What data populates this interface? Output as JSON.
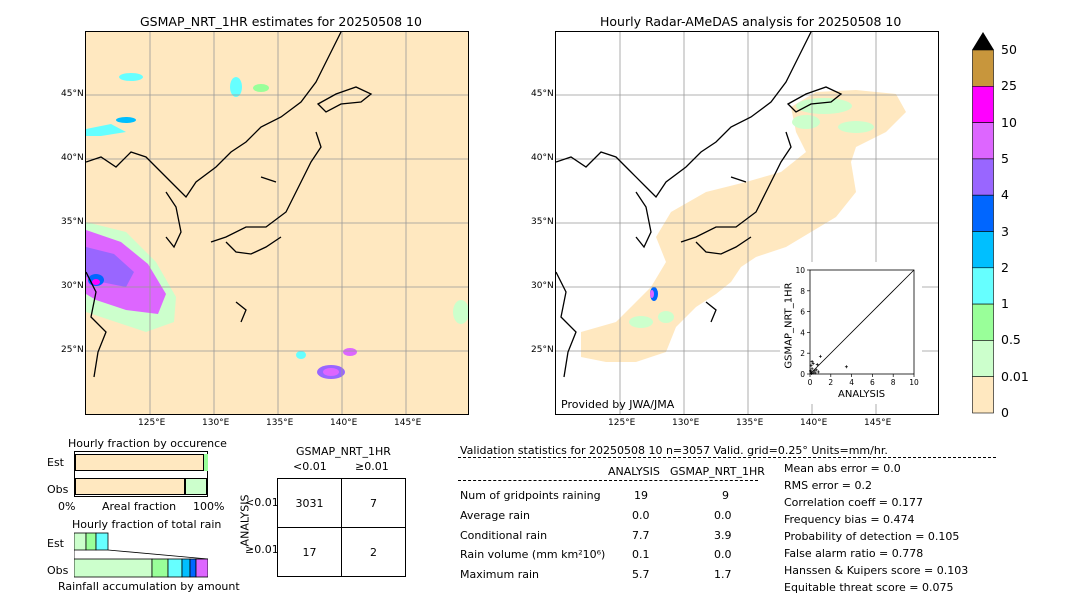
{
  "left_map": {
    "title": "GSMAP_NRT_1HR estimates for 20250508 10",
    "lat_labels": [
      "45°N",
      "40°N",
      "35°N",
      "30°N",
      "25°N"
    ],
    "lon_labels": [
      "125°E",
      "130°E",
      "135°E",
      "140°E",
      "145°E"
    ]
  },
  "right_map": {
    "title": "Hourly Radar-AMeDAS analysis for 20250508 10",
    "lat_labels": [
      "45°N",
      "40°N",
      "35°N",
      "30°N",
      "25°N"
    ],
    "lon_labels": [
      "125°E",
      "130°E",
      "135°E",
      "140°E",
      "145°E"
    ],
    "credit": "Provided by JWA/JMA"
  },
  "colorbar": {
    "labels": [
      "50",
      "25",
      "10",
      "5",
      "4",
      "3",
      "2",
      "1",
      "0.5",
      "0.01",
      "0"
    ],
    "colors": [
      "#c8963c",
      "#ff00ff",
      "#dd66ff",
      "#9966ff",
      "#0066ff",
      "#00bfff",
      "#66ffff",
      "#99ff99",
      "#ccffcc",
      "#ffe8c0"
    ]
  },
  "scatter": {
    "xlabel": "ANALYSIS",
    "ylabel": "GSMAP_NRT_1HR",
    "ticks": [
      "0",
      "2",
      "4",
      "6",
      "8",
      "10"
    ]
  },
  "occurrence": {
    "title": "Hourly fraction by occurence",
    "row_est": "Est",
    "row_obs": "Obs",
    "axis_left": "0%",
    "axis_mid": "Areal fraction",
    "axis_right": "100%"
  },
  "total_rain": {
    "title": "Hourly fraction of total rain",
    "row_est": "Est",
    "row_obs": "Obs",
    "footer": "Rainfall accumulation by amount"
  },
  "contingency": {
    "title": "GSMAP_NRT_1HR",
    "col1": "<0.01",
    "col2": "≥0.01",
    "side": "ANALYSIS",
    "row1": "<0.01",
    "row2": "≥0.01",
    "cells": [
      "3031",
      "7",
      "17",
      "2"
    ]
  },
  "validation": {
    "header": "Validation statistics for 20250508 10  n=3057 Valid. grid=0.25° Units=mm/hr.",
    "col_analysis": "ANALYSIS",
    "col_gsmap": "GSMAP_NRT_1HR",
    "rows": [
      {
        "label": "Num of gridpoints raining",
        "a": "19",
        "g": "9"
      },
      {
        "label": "Average rain",
        "a": "0.0",
        "g": "0.0"
      },
      {
        "label": "Conditional rain",
        "a": "7.7",
        "g": "3.9"
      },
      {
        "label": "Rain volume (mm km²10⁶)",
        "a": "0.1",
        "g": "0.0"
      },
      {
        "label": "Maximum rain",
        "a": "5.7",
        "g": "1.7"
      }
    ],
    "scores": [
      "Mean abs error =    0.0",
      "RMS error =    0.2",
      "Correlation coeff =  0.177",
      "Frequency bias =  0.474",
      "Probability of detection =  0.105",
      "False alarm ratio =  0.778",
      "Hanssen & Kuipers score =  0.103",
      "Equitable threat score =  0.075"
    ]
  },
  "chart_data": {
    "type": "scatter",
    "title": "",
    "xlabel": "ANALYSIS",
    "ylabel": "GSMAP_NRT_1HR",
    "xlim": [
      0,
      10
    ],
    "ylim": [
      0,
      10
    ],
    "points": [
      {
        "x": 0.1,
        "y": 0.2
      },
      {
        "x": 0.2,
        "y": 0.5
      },
      {
        "x": 0.3,
        "y": 1.0
      },
      {
        "x": 0.4,
        "y": 0.3
      },
      {
        "x": 0.5,
        "y": 0.1
      },
      {
        "x": 0.2,
        "y": 1.2
      },
      {
        "x": 0.1,
        "y": 0.8
      },
      {
        "x": 0.6,
        "y": 0.4
      },
      {
        "x": 1.0,
        "y": 1.7
      },
      {
        "x": 0.8,
        "y": 0.2
      },
      {
        "x": 3.5,
        "y": 0.7
      },
      {
        "x": 0.3,
        "y": 0.1
      },
      {
        "x": 0.15,
        "y": 0.05
      },
      {
        "x": 0.05,
        "y": 0.3
      },
      {
        "x": 0.7,
        "y": 0.9
      }
    ]
  }
}
